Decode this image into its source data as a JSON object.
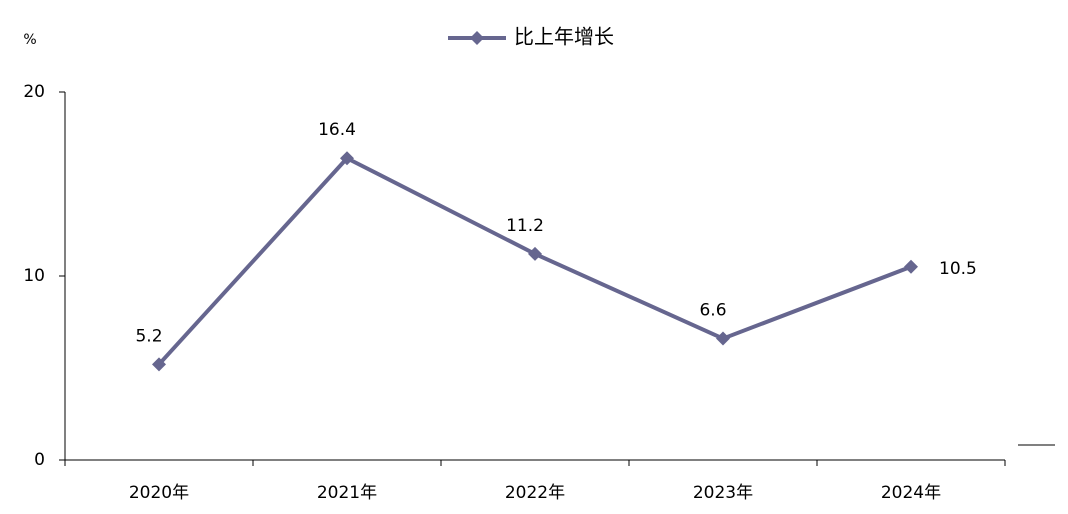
{
  "chart_data": {
    "type": "line",
    "unit": "%",
    "categories": [
      "2020年",
      "2021年",
      "2022年",
      "2023年",
      "2024年"
    ],
    "series": [
      {
        "name": "比上年增长",
        "color": "#66668f",
        "values": [
          5.2,
          16.4,
          11.2,
          6.6,
          10.5
        ]
      }
    ],
    "ylim": [
      0,
      20
    ],
    "yticks": [
      0,
      10,
      20
    ],
    "data_labels": true
  }
}
